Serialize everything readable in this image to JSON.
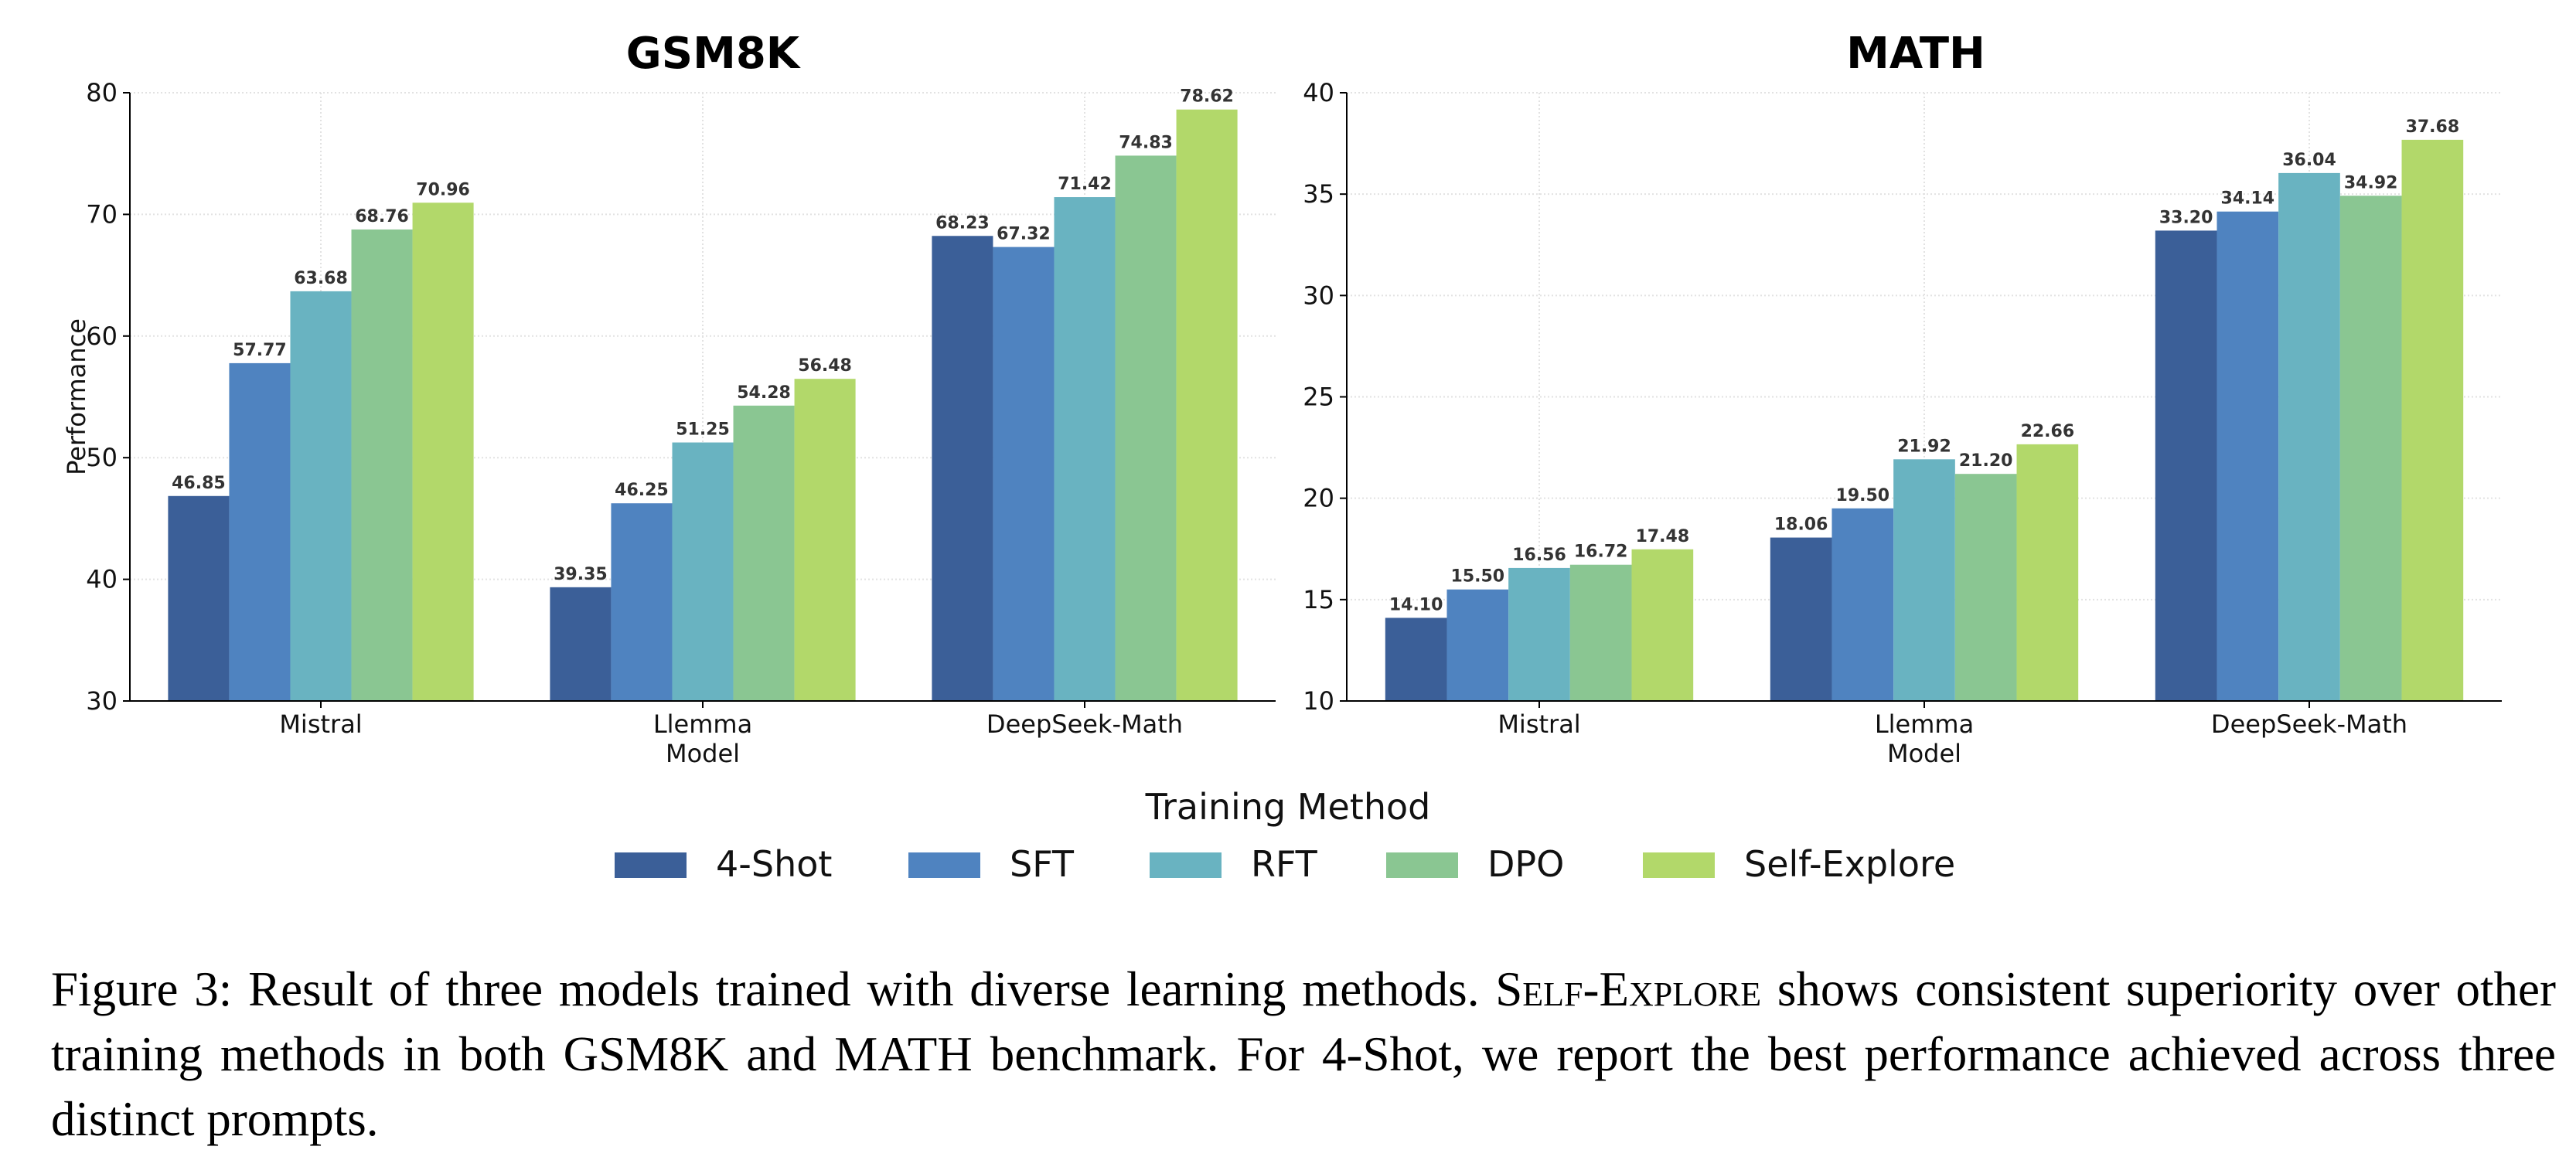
{
  "chart_data": [
    {
      "type": "bar",
      "title": "GSM8K",
      "xlabel": "Model",
      "ylabel": "Performance",
      "categories": [
        "Mistral",
        "Llemma",
        "DeepSeek-Math"
      ],
      "ylim": [
        30,
        80
      ],
      "yticks": [
        "30",
        "40",
        "50",
        "60",
        "70",
        "80"
      ],
      "grid": true,
      "series": [
        {
          "name": "4-Shot",
          "values": [
            46.85,
            39.35,
            68.23
          ],
          "labels": [
            "46.85",
            "39.35",
            "68.23"
          ]
        },
        {
          "name": "SFT",
          "values": [
            57.77,
            46.25,
            67.32
          ],
          "labels": [
            "57.77",
            "46.25",
            "67.32"
          ]
        },
        {
          "name": "RFT",
          "values": [
            63.68,
            51.25,
            71.42
          ],
          "labels": [
            "63.68",
            "51.25",
            "71.42"
          ]
        },
        {
          "name": "DPO",
          "values": [
            68.76,
            54.28,
            74.83
          ],
          "labels": [
            "68.76",
            "54.28",
            "74.83"
          ]
        },
        {
          "name": "Self-Explore",
          "values": [
            70.96,
            56.48,
            78.62
          ],
          "labels": [
            "70.96",
            "56.48",
            "78.62"
          ]
        }
      ]
    },
    {
      "type": "bar",
      "title": "MATH",
      "xlabel": "Model",
      "ylabel": "",
      "categories": [
        "Mistral",
        "Llemma",
        "DeepSeek-Math"
      ],
      "ylim": [
        10,
        40
      ],
      "yticks": [
        "10",
        "15",
        "20",
        "25",
        "30",
        "35",
        "40"
      ],
      "grid": true,
      "series": [
        {
          "name": "4-Shot",
          "values": [
            14.1,
            18.06,
            33.2
          ],
          "labels": [
            "14.10",
            "18.06",
            "33.20"
          ]
        },
        {
          "name": "SFT",
          "values": [
            15.5,
            19.5,
            34.14
          ],
          "labels": [
            "15.50",
            "19.50",
            "34.14"
          ]
        },
        {
          "name": "RFT",
          "values": [
            16.56,
            21.92,
            36.04
          ],
          "labels": [
            "16.56",
            "21.92",
            "36.04"
          ]
        },
        {
          "name": "DPO",
          "values": [
            16.72,
            21.2,
            34.92
          ],
          "labels": [
            "16.72",
            "21.20",
            "34.92"
          ]
        },
        {
          "name": "Self-Explore",
          "values": [
            17.48,
            22.66,
            37.68
          ],
          "labels": [
            "17.48",
            "22.66",
            "37.68"
          ]
        }
      ]
    }
  ],
  "legend": {
    "title": "Training Method",
    "placement": "bottom-center",
    "items": [
      "4-Shot",
      "SFT",
      "RFT",
      "DPO",
      "Self-Explore"
    ]
  },
  "colors": [
    "#3b5f98",
    "#4f83c0",
    "#69b3c1",
    "#8ac692",
    "#b2d86a"
  ],
  "caption": {
    "prefix": "Figure 3: Result of three models trained with diverse learning methods. ",
    "method": "Self-Explore",
    "suffix": " shows consistent superiority over other training methods in both GSM8K and MATH benchmark. For 4-Shot, we report the best performance achieved across three distinct prompts."
  }
}
